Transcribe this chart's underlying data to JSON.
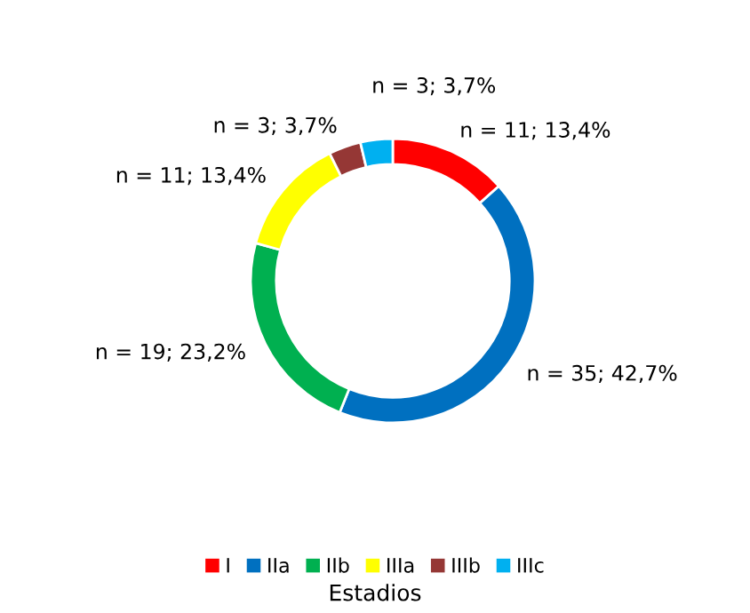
{
  "chart_data": {
    "type": "donut",
    "categories": [
      "I",
      "IIa",
      "IIb",
      "IIIa",
      "IIIb",
      "IIIc"
    ],
    "values": [
      11,
      35,
      19,
      11,
      3,
      3
    ],
    "value_labels": [
      "n = 11; 13,4%",
      "n = 35; 42,7%",
      "n = 19; 23,2%",
      "n = 11; 13,4%",
      "n = 3; 3,7%",
      "n = 3; 3,7%"
    ],
    "colors": [
      "#ff0000",
      "#0070c0",
      "#00b050",
      "#ffff00",
      "#953735",
      "#00b0f0"
    ],
    "legend": "bottom",
    "legend_title": "Estadios"
  }
}
